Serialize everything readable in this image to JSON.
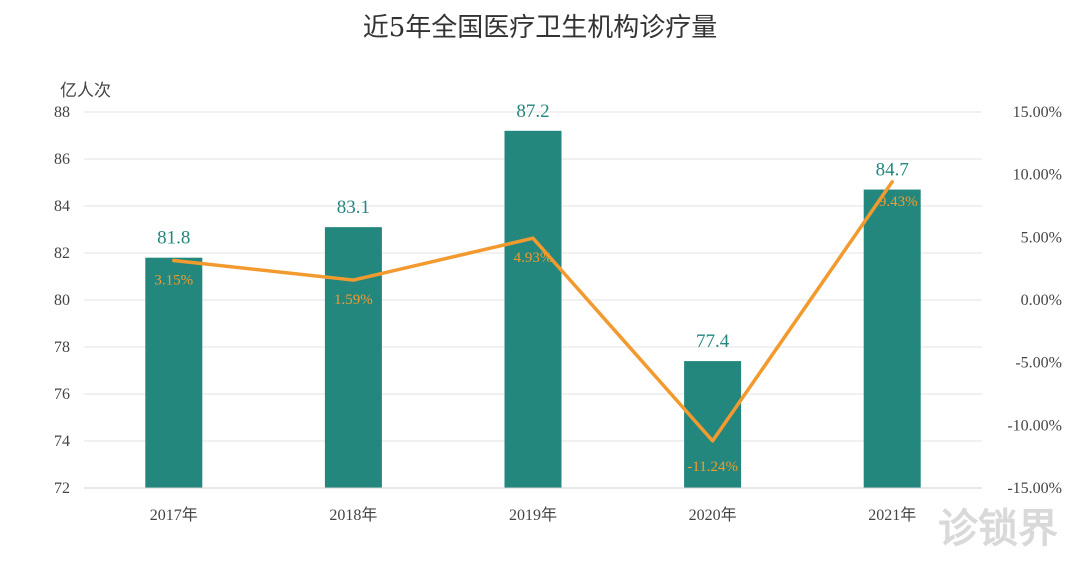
{
  "watermark": "诊锁界",
  "chart_data": {
    "type": "bar",
    "title": "近5年全国医疗卫生机构诊疗量",
    "ylabel": "亿人次",
    "categories": [
      "2017年",
      "2018年",
      "2019年",
      "2020年",
      "2021年"
    ],
    "series": [
      {
        "type": "bar",
        "values": [
          81.8,
          83.1,
          87.2,
          77.4,
          84.7
        ],
        "labels": [
          "81.8",
          "83.1",
          "87.2",
          "77.4",
          "84.7"
        ]
      },
      {
        "type": "line",
        "axis": "right",
        "values": [
          3.15,
          1.59,
          4.93,
          -11.24,
          9.43
        ],
        "labels": [
          "3.15%",
          "1.59%",
          "4.93%",
          "-11.24%",
          "9.43%"
        ]
      }
    ],
    "ylim": [
      72,
      88
    ],
    "yticks": [
      "72",
      "74",
      "76",
      "78",
      "80",
      "82",
      "84",
      "86",
      "88"
    ],
    "y2lim": [
      -15,
      15
    ],
    "y2ticks": [
      "-15.00%",
      "-10.00%",
      "-5.00%",
      "0.00%",
      "5.00%",
      "10.00%",
      "15.00%"
    ],
    "grid": true,
    "colors": {
      "bar": "#23877e",
      "line": "#f39a2f",
      "bar_label": "#23877e",
      "line_label": "#f39a2f"
    }
  }
}
